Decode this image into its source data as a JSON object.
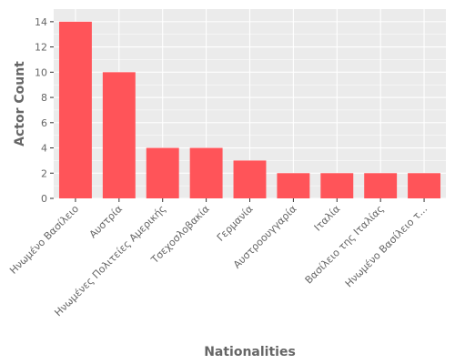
{
  "chart_data": {
    "type": "bar",
    "categories": [
      "Ηνωμένο Βασίλειο",
      "Αυστρία",
      "Ηνωμένες Πολιτείες Αμερικής",
      "Τσεχοσλοβακία",
      "Γερμανία",
      "Αυστροουγγαρία",
      "Ιταλία",
      "Βασίλειο της Ιταλίας",
      "Ηνωμένο Βασίλειο τ..."
    ],
    "values": [
      14,
      10,
      4,
      4,
      3,
      2,
      2,
      2,
      2
    ],
    "xlabel": "Nationalities",
    "ylabel": "Actor Count",
    "ylim": [
      0,
      15
    ],
    "yticks": [
      0,
      2,
      4,
      6,
      8,
      10,
      12,
      14
    ],
    "grid": true,
    "legend": "none",
    "colors": {
      "bar": "#ff5459",
      "panel": "#ebebeb",
      "grid": "#ffffff",
      "text": "#666666"
    }
  }
}
